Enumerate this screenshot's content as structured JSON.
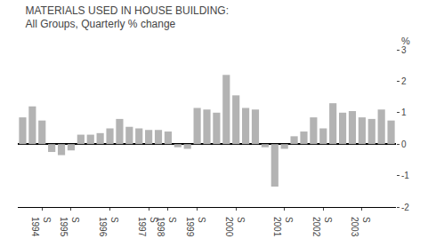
{
  "chart_data": {
    "type": "bar",
    "title": "MATERIALS USED IN HOUSE BUILDING:",
    "subtitle": "All Groups, Quarterly % change",
    "ylabel": "%",
    "categories": [
      null,
      null,
      "S\n1994",
      null,
      null,
      "S\n1995",
      null,
      null,
      null,
      "S\n1996",
      null,
      null,
      null,
      "S\n1997",
      null,
      "S\n1998",
      null,
      null,
      "S\n1999",
      null,
      null,
      null,
      "S\n2000",
      null,
      null,
      null,
      null,
      "S\n2001",
      null,
      null,
      null,
      "S\n2002",
      null,
      null,
      null,
      "S\n2003",
      null,
      null,
      null
    ],
    "values": [
      0.85,
      1.2,
      0.75,
      -0.25,
      -0.35,
      -0.2,
      0.3,
      0.3,
      0.35,
      0.5,
      0.8,
      0.55,
      0.5,
      0.45,
      0.45,
      0.4,
      -0.1,
      -0.15,
      1.15,
      1.1,
      1.0,
      2.2,
      1.55,
      1.15,
      1.1,
      -0.1,
      -1.35,
      -0.15,
      0.25,
      0.4,
      0.85,
      0.5,
      1.3,
      1.0,
      1.05,
      0.85,
      0.8,
      1.1,
      0.75
    ],
    "color": "#b3b3b3",
    "ylim": [
      -2,
      3
    ],
    "yticks": [
      -2,
      -1,
      0,
      1,
      2,
      3
    ],
    "grid": false
  }
}
